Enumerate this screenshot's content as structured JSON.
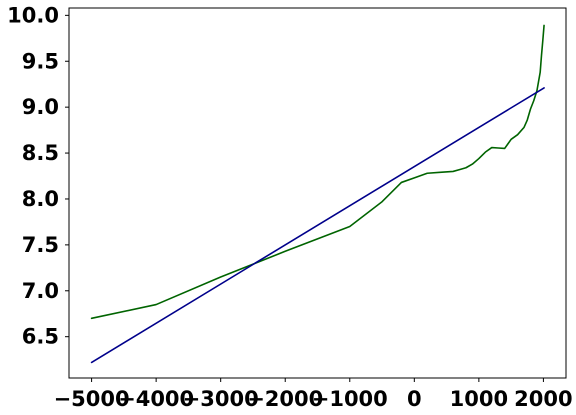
{
  "chart_data": {
    "type": "line",
    "title": "",
    "xlabel": "",
    "ylabel": "",
    "xlim": [
      -5350,
      2350
    ],
    "ylim": [
      6.05,
      10.08
    ],
    "grid": false,
    "x_ticks": [
      -5000,
      -4000,
      -3000,
      -2000,
      -1000,
      0,
      1000,
      2000
    ],
    "x_tick_labels": [
      "−5000",
      "−4000",
      "−3000",
      "−2000",
      "−1000",
      "0",
      "1000",
      "2000"
    ],
    "y_ticks": [
      6.5,
      7.0,
      7.5,
      8.0,
      8.5,
      9.0,
      9.5,
      10.0
    ],
    "y_tick_labels": [
      "6.5",
      "7.0",
      "7.5",
      "8.0",
      "8.5",
      "9.0",
      "9.5",
      "10.0"
    ],
    "series": [
      {
        "color": "#006400",
        "points": [
          [
            -5000,
            6.7
          ],
          [
            -4000,
            6.85
          ],
          [
            -3000,
            7.15
          ],
          [
            -2000,
            7.43
          ],
          [
            -1000,
            7.7
          ],
          [
            -500,
            7.97
          ],
          [
            -200,
            8.18
          ],
          [
            0,
            8.23
          ],
          [
            200,
            8.28
          ],
          [
            400,
            8.29
          ],
          [
            600,
            8.3
          ],
          [
            700,
            8.32
          ],
          [
            800,
            8.34
          ],
          [
            900,
            8.38
          ],
          [
            1000,
            8.44
          ],
          [
            1100,
            8.51
          ],
          [
            1200,
            8.56
          ],
          [
            1300,
            8.555
          ],
          [
            1400,
            8.55
          ],
          [
            1450,
            8.6
          ],
          [
            1500,
            8.65
          ],
          [
            1600,
            8.7
          ],
          [
            1700,
            8.78
          ],
          [
            1750,
            8.86
          ],
          [
            1800,
            8.98
          ],
          [
            1850,
            9.07
          ],
          [
            1900,
            9.18
          ],
          [
            1950,
            9.38
          ],
          [
            1970,
            9.56
          ],
          [
            1990,
            9.72
          ],
          [
            2010,
            9.89
          ]
        ]
      },
      {
        "color": "#00008B",
        "points": [
          [
            -5000,
            6.22
          ],
          [
            2010,
            9.21
          ]
        ]
      }
    ]
  }
}
